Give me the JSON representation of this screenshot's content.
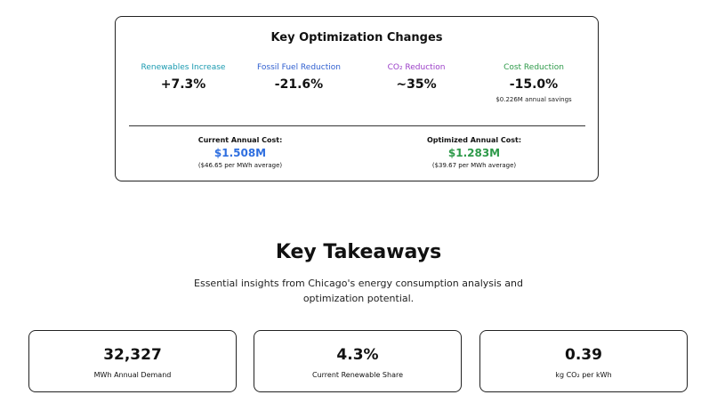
{
  "optimization": {
    "title": "Key Optimization Changes",
    "metrics": [
      {
        "label": "Renewables Increase",
        "value": "+7.3%",
        "sub": "",
        "color": "#1a9ab0"
      },
      {
        "label": "Fossil Fuel Reduction",
        "value": "-21.6%",
        "sub": "",
        "color": "#2f5fd0"
      },
      {
        "label": "CO₂ Reduction",
        "value": "~35%",
        "sub": "",
        "color": "#9b3fc8"
      },
      {
        "label": "Cost Reduction",
        "value": "-15.0%",
        "sub": "$0.226M annual savings",
        "color": "#2e9a4a"
      }
    ],
    "current": {
      "label": "Current Annual Cost:",
      "value": "$1.508M",
      "sub": "($46.65 per MWh average)",
      "color": "#2f6fe0"
    },
    "optimized": {
      "label": "Optimized Annual Cost:",
      "value": "$1.283M",
      "sub": "($39.67 per MWh average)",
      "color": "#2e9a4a"
    }
  },
  "takeaways": {
    "title": "Key Takeaways",
    "subtitle": "Essential insights from Chicago's energy consumption analysis and optimization potential.",
    "cards": [
      {
        "value": "32,327",
        "label": "MWh Annual Demand"
      },
      {
        "value": "4.3%",
        "label": "Current Renewable Share"
      },
      {
        "value": "0.39",
        "label": "kg CO₂ per kWh"
      }
    ]
  }
}
